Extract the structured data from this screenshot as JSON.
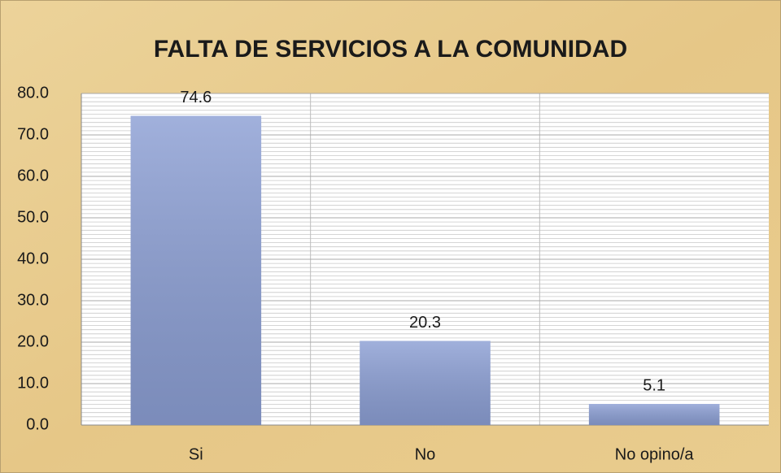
{
  "chart_data": {
    "type": "bar",
    "title": "FALTA DE SERVICIOS A LA COMUNIDAD",
    "categories": [
      "Si",
      "No",
      "No opino/a"
    ],
    "values": [
      74.6,
      20.3,
      5.1
    ],
    "color": "#8c9fd4",
    "ylim": [
      0,
      80
    ],
    "yticks": [
      {
        "value": 0,
        "label": "0.0"
      },
      {
        "value": 10,
        "label": "10.0"
      },
      {
        "value": 20,
        "label": "20.0"
      },
      {
        "value": 30,
        "label": "30.0"
      },
      {
        "value": 40,
        "label": "40.0"
      },
      {
        "value": 50,
        "label": "50.0"
      },
      {
        "value": 60,
        "label": "60.0"
      },
      {
        "value": 70,
        "label": "70.0"
      },
      {
        "value": 80,
        "label": "80.0"
      }
    ],
    "grid": true
  }
}
